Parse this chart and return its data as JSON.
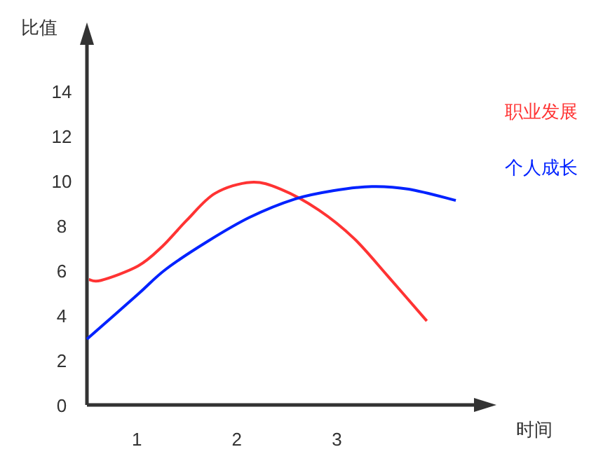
{
  "chart_data": {
    "type": "line",
    "xlabel": "时间",
    "ylabel": "比值",
    "xlim": [
      0.5,
      4.4
    ],
    "xticks": [
      1,
      2,
      3
    ],
    "ylim": [
      0,
      16.2
    ],
    "yticks": [
      0,
      2,
      4,
      6,
      8,
      10,
      12,
      14
    ],
    "legend": "right",
    "grid": false,
    "series": [
      {
        "name": "职业发展",
        "color": "#ff3333",
        "x": [
          0.52,
          0.64,
          1.01,
          1.25,
          1.5,
          1.78,
          2.14,
          2.44,
          2.82,
          3.17,
          3.51,
          3.9
        ],
        "values": [
          5.6,
          5.56,
          6.2,
          7.06,
          8.25,
          9.44,
          9.94,
          9.63,
          8.7,
          7.44,
          5.75,
          3.75
        ]
      },
      {
        "name": "个人成长",
        "color": "#0022ff",
        "x": [
          0.5,
          1.01,
          1.29,
          1.71,
          2.13,
          2.58,
          2.96,
          3.35,
          3.72,
          4.19
        ],
        "values": [
          2.94,
          4.94,
          6.06,
          7.31,
          8.38,
          9.19,
          9.56,
          9.75,
          9.63,
          9.13
        ]
      }
    ]
  }
}
